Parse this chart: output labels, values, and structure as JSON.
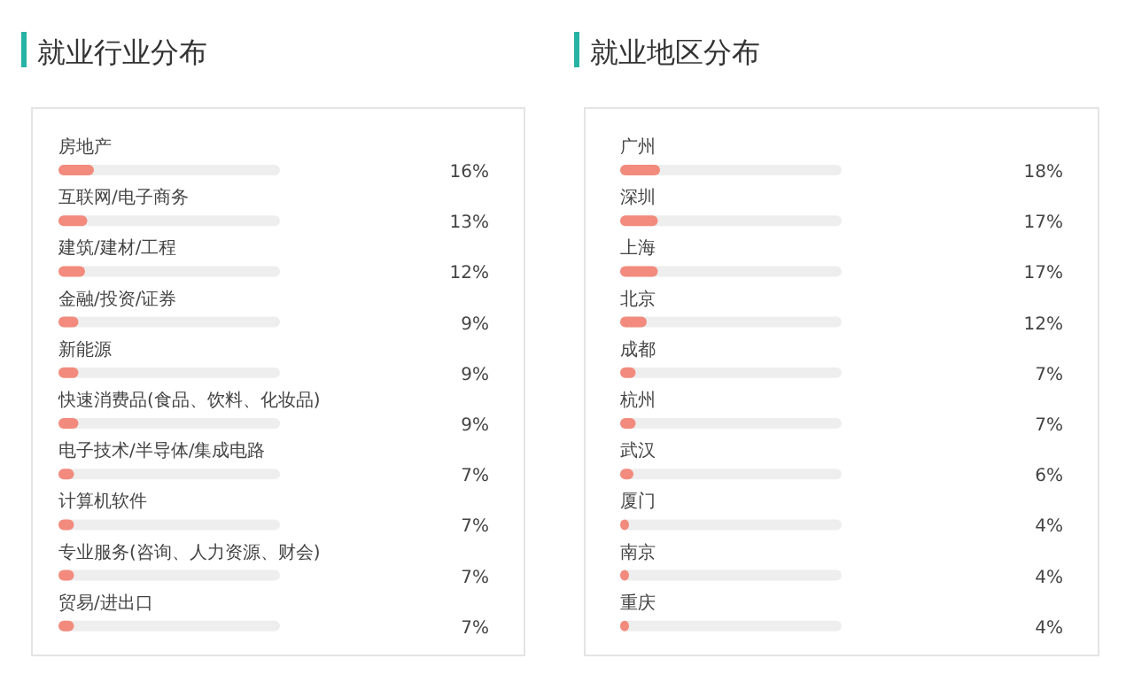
{
  "chart_data": [
    {
      "type": "bar",
      "orientation": "horizontal",
      "title": "就业行业分布",
      "color": "#f28b7d",
      "xlim": [
        0,
        100
      ],
      "categories": [
        "房地产",
        "互联网/电子商务",
        "建筑/建材/工程",
        "金融/投资/证券",
        "新能源",
        "快速消费品(食品、饮料、化妆品)",
        "电子技术/半导体/集成电路",
        "计算机软件",
        "专业服务(咨询、人力资源、财会)",
        "贸易/进出口"
      ],
      "values": [
        16,
        13,
        12,
        9,
        9,
        9,
        7,
        7,
        7,
        7
      ],
      "value_labels": [
        "16%",
        "13%",
        "12%",
        "9%",
        "9%",
        "9%",
        "7%",
        "7%",
        "7%",
        "7%"
      ]
    },
    {
      "type": "bar",
      "orientation": "horizontal",
      "title": "就业地区分布",
      "color": "#f28b7d",
      "xlim": [
        0,
        100
      ],
      "categories": [
        "广州",
        "深圳",
        "上海",
        "北京",
        "成都",
        "杭州",
        "武汉",
        "厦门",
        "南京",
        "重庆"
      ],
      "values": [
        18,
        17,
        17,
        12,
        7,
        7,
        6,
        4,
        4,
        4
      ],
      "value_labels": [
        "18%",
        "17%",
        "17%",
        "12%",
        "7%",
        "7%",
        "6%",
        "4%",
        "4%",
        "4%"
      ]
    }
  ]
}
